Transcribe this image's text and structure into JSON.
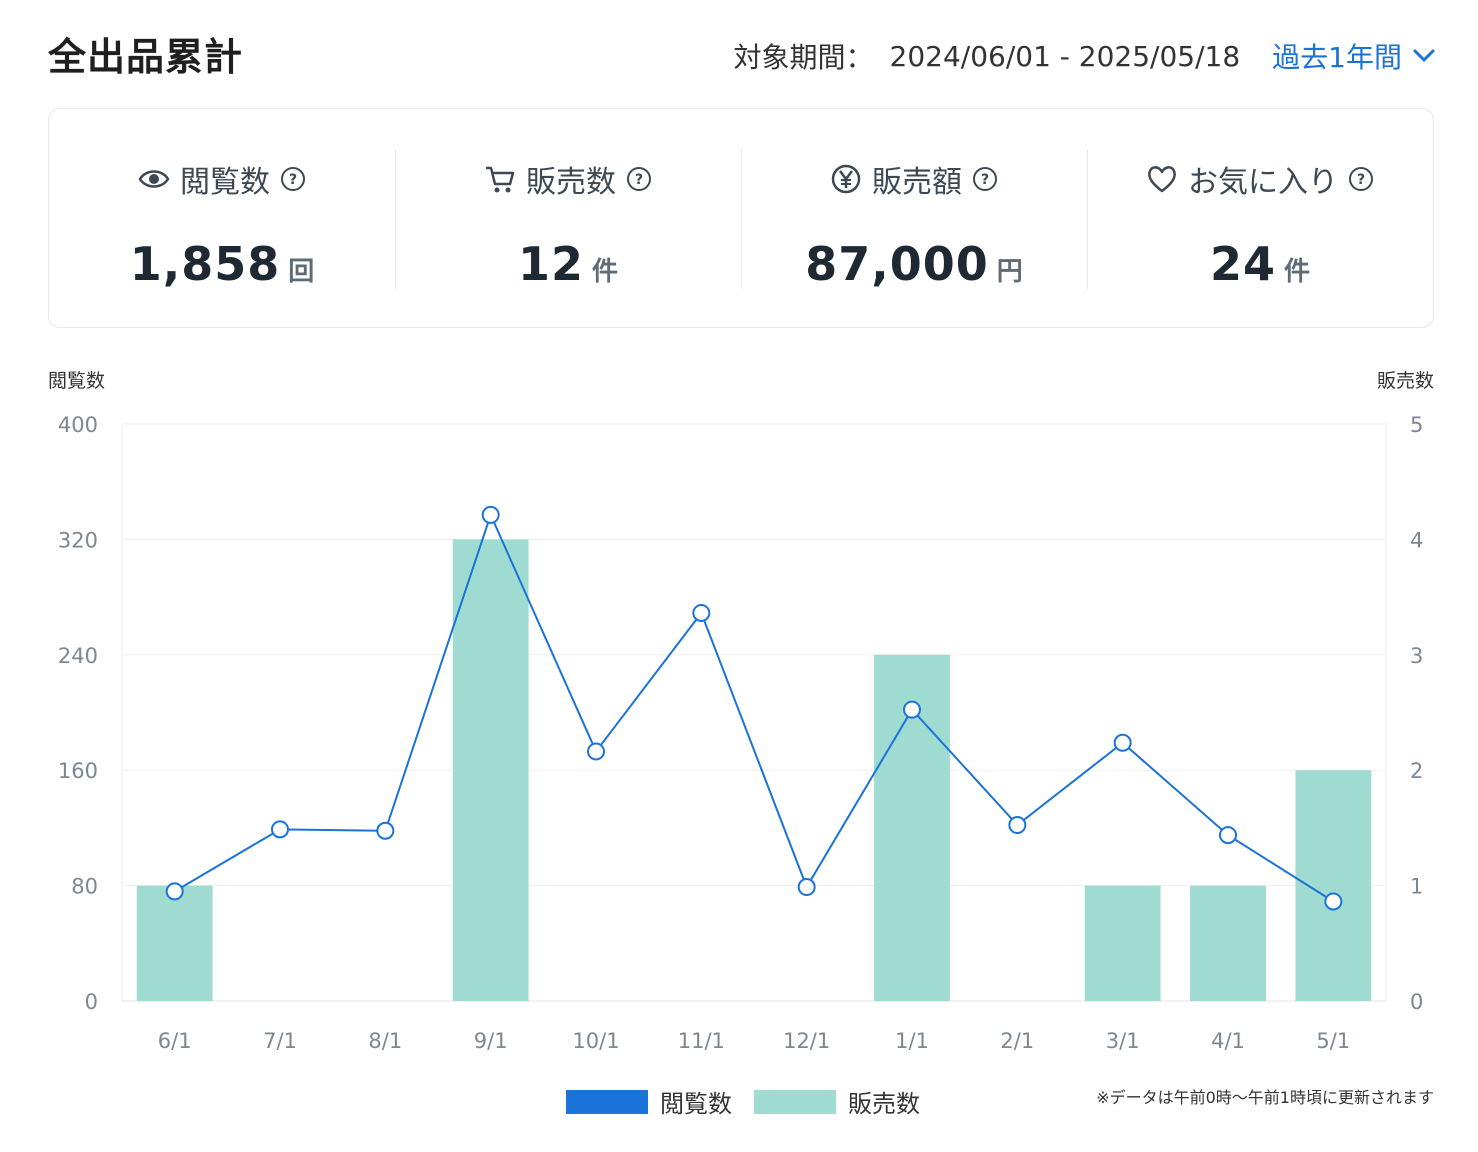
{
  "header": {
    "title": "全出品累計",
    "period_label": "対象期間：",
    "period_range": "2024/06/01 - 2025/05/18",
    "period_select": "過去1年間"
  },
  "metrics": [
    {
      "label": "閲覧数",
      "value": "1,858",
      "unit": "回",
      "icon": "eye-icon"
    },
    {
      "label": "販売数",
      "value": "12",
      "unit": "件",
      "icon": "cart-icon"
    },
    {
      "label": "販売額",
      "value": "87,000",
      "unit": "円",
      "icon": "yen-icon"
    },
    {
      "label": "お気に入り",
      "value": "24",
      "unit": "件",
      "icon": "heart-icon"
    }
  ],
  "colors": {
    "views": "#1a73d9",
    "sales": "#9fdbd1",
    "accent": "#1a73d9"
  },
  "chart_data": {
    "type": "bar+line",
    "categories": [
      "6/1",
      "7/1",
      "8/1",
      "9/1",
      "10/1",
      "11/1",
      "12/1",
      "1/1",
      "2/1",
      "3/1",
      "4/1",
      "5/1"
    ],
    "series": [
      {
        "name": "閲覧数",
        "type": "line",
        "axis": "left",
        "values": [
          76,
          119,
          118,
          337,
          173,
          269,
          79,
          202,
          122,
          179,
          115,
          69
        ]
      },
      {
        "name": "販売数",
        "type": "bar",
        "axis": "right",
        "values": [
          1,
          0,
          0,
          4,
          0,
          0,
          0,
          3,
          0,
          1,
          1,
          2
        ]
      }
    ],
    "y_left": {
      "label": "閲覧数",
      "ticks": [
        0,
        80,
        160,
        240,
        320,
        400
      ],
      "range": [
        0,
        400
      ]
    },
    "y_right": {
      "label": "販売数",
      "ticks": [
        0,
        1,
        2,
        3,
        4,
        5
      ],
      "range": [
        0,
        5
      ]
    },
    "grid": true,
    "legend": "bottom-center"
  },
  "legend": {
    "views": "閲覧数",
    "sales": "販売数"
  },
  "footnote": "※データは午前0時〜午前1時頃に更新されます"
}
